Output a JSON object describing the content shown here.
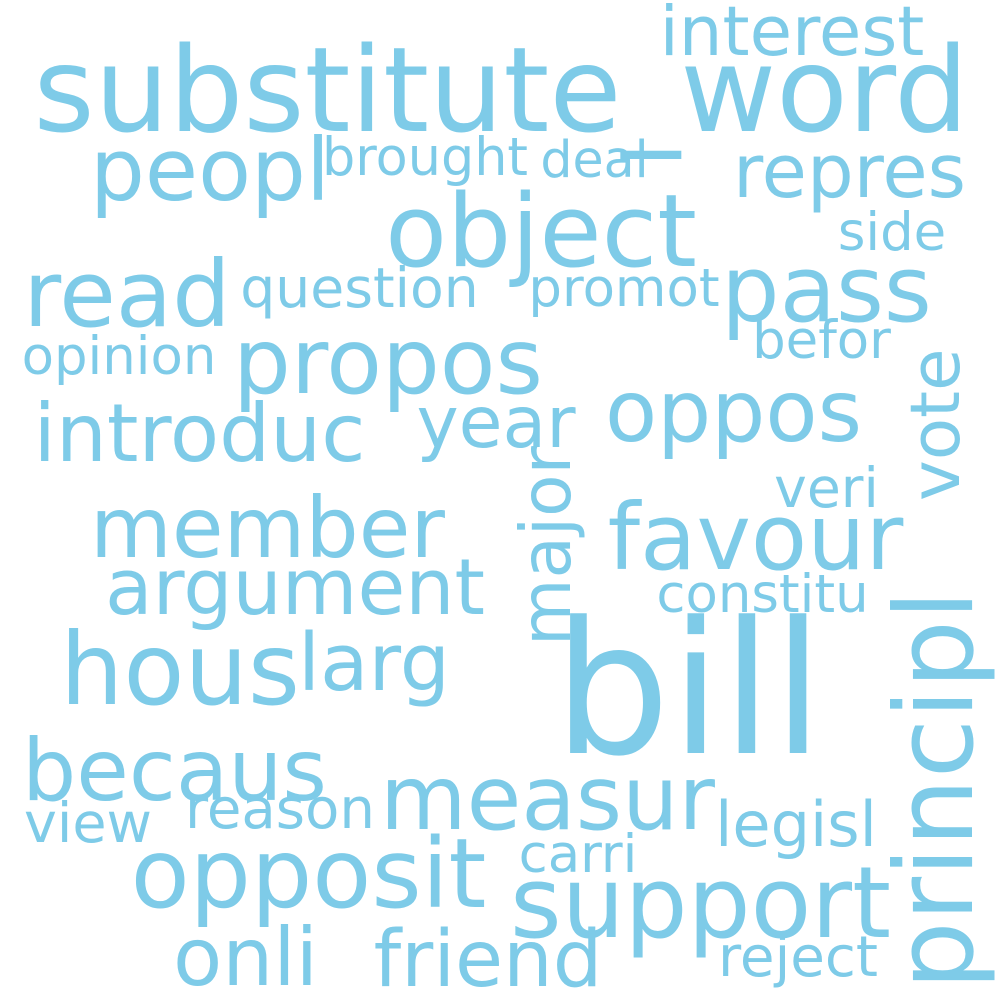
{
  "word_color": "#7ecbe8",
  "background": "#ffffff",
  "words": [
    {
      "text": "substitute_word",
      "rotated": false
    },
    {
      "text": "interest",
      "rotated": false
    },
    {
      "text": "peopl",
      "rotated": false
    },
    {
      "text": "brought",
      "rotated": false
    },
    {
      "text": "deal",
      "rotated": false
    },
    {
      "text": "repres",
      "rotated": false
    },
    {
      "text": "object",
      "rotated": false
    },
    {
      "text": "side",
      "rotated": false
    },
    {
      "text": "read",
      "rotated": false
    },
    {
      "text": "question",
      "rotated": false
    },
    {
      "text": "promot",
      "rotated": false
    },
    {
      "text": "pass",
      "rotated": false
    },
    {
      "text": "propos",
      "rotated": false
    },
    {
      "text": "opinion",
      "rotated": false
    },
    {
      "text": "befor",
      "rotated": false
    },
    {
      "text": "vote",
      "rotated": true
    },
    {
      "text": "oppos",
      "rotated": false
    },
    {
      "text": "year",
      "rotated": false
    },
    {
      "text": "introduc",
      "rotated": false
    },
    {
      "text": "member",
      "rotated": false
    },
    {
      "text": "major",
      "rotated": true
    },
    {
      "text": "veri",
      "rotated": false
    },
    {
      "text": "favour",
      "rotated": false
    },
    {
      "text": "argument",
      "rotated": false
    },
    {
      "text": "constitu",
      "rotated": false
    },
    {
      "text": "hous",
      "rotated": false
    },
    {
      "text": "larg",
      "rotated": false
    },
    {
      "text": "bill",
      "rotated": false
    },
    {
      "text": "principl",
      "rotated": true
    },
    {
      "text": "becaus",
      "rotated": false
    },
    {
      "text": "measur",
      "rotated": false
    },
    {
      "text": "view",
      "rotated": false
    },
    {
      "text": "reason",
      "rotated": false
    },
    {
      "text": "legisl",
      "rotated": false
    },
    {
      "text": "opposit",
      "rotated": false
    },
    {
      "text": "carri",
      "rotated": false
    },
    {
      "text": "support",
      "rotated": false
    },
    {
      "text": "onli",
      "rotated": false
    },
    {
      "text": "friend",
      "rotated": false
    },
    {
      "text": "reject",
      "rotated": false
    }
  ]
}
